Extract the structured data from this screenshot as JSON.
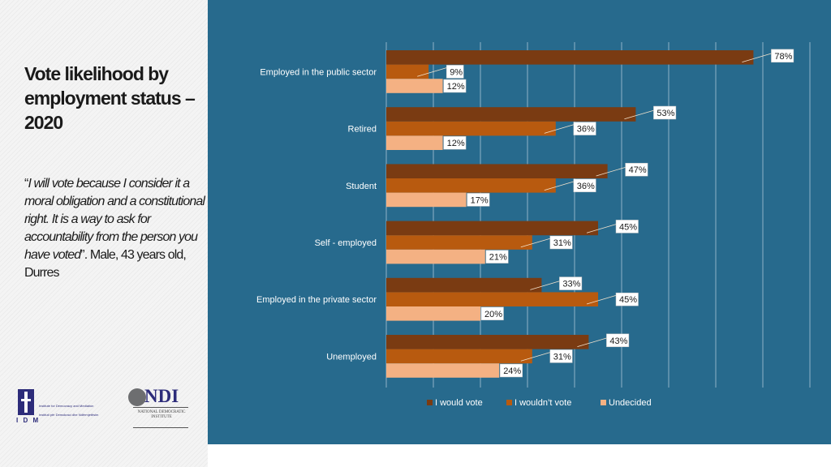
{
  "title": "Vote likelihood by employment status – 2020",
  "quote": {
    "open": "“",
    "italic": "I will vote because I consider it a moral obligation and a constitutional right. It is a way to ask for accountability from the person you have voted",
    "close": "”. Male, 43 years old, Durres"
  },
  "logos": {
    "idm": {
      "letters": "I D M",
      "name": "Institute for Democracy and Mediation",
      "subname": "Instituti për Demokraci dhe Ndërmjetësim",
      "icon": "idm-logo-icon"
    },
    "ndi": {
      "text": "NDI",
      "subtitle": "NATIONAL DEMOCRATIC INSTITUTE",
      "icon": "globe-icon"
    }
  },
  "chart_data": {
    "type": "bar",
    "orientation": "horizontal",
    "categories": [
      "Employed in the public sector",
      "Retired",
      "Student",
      "Self - employed",
      "Employed in the private sector",
      "Unemployed"
    ],
    "series": [
      {
        "name": "I would vote",
        "values": [
          78,
          53,
          47,
          45,
          33,
          43
        ],
        "color": "#7a3b12"
      },
      {
        "name": "I wouldn’t vote",
        "values": [
          9,
          36,
          36,
          31,
          45,
          31
        ],
        "color": "#b85a0f"
      },
      {
        "name": "Undecided",
        "values": [
          12,
          12,
          17,
          21,
          20,
          24
        ],
        "color": "#f4b183"
      }
    ],
    "value_suffix": "%",
    "xlim": [
      0,
      90
    ],
    "grid": true,
    "legend_position": "bottom"
  },
  "colors": {
    "panel_background": "#276a8d",
    "gridline": "#8fb3c8"
  }
}
